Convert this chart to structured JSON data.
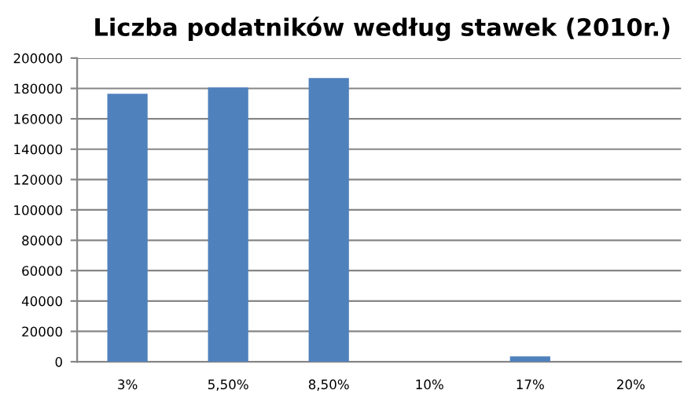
{
  "chart_data": {
    "type": "bar",
    "title": "Liczba podatników według stawek (2010r.)",
    "categories": [
      "3%",
      "5,50%",
      "8,50%",
      "10%",
      "17%",
      "20%"
    ],
    "values": [
      176500,
      180700,
      186900,
      0,
      3500,
      0
    ],
    "color": "#4f81bd",
    "ylim": [
      0,
      200000
    ],
    "yticks": [
      0,
      20000,
      40000,
      60000,
      80000,
      100000,
      120000,
      140000,
      160000,
      180000,
      200000
    ],
    "grid": "y"
  }
}
